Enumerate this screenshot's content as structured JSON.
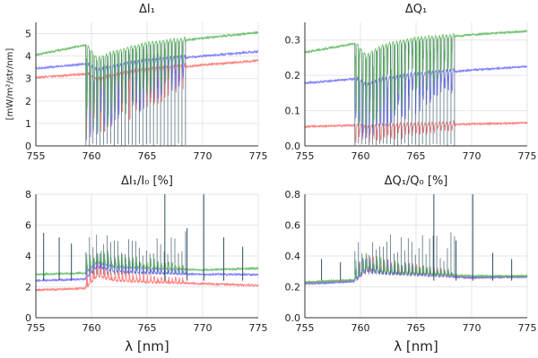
{
  "colors": {
    "red": "#ff6b6b",
    "blue": "#6b6bff",
    "green": "#5cb85c",
    "dark": "#2f4f5f",
    "grid": "#e6e6e6",
    "axis": "#333333"
  },
  "chart_data": [
    {
      "type": "line",
      "title": "ΔI₁",
      "xlabel": "",
      "ylabel": "[mW/m²/str/nm]",
      "xlim": [
        755,
        775
      ],
      "ylim": [
        0,
        5.5
      ],
      "xticks": [
        "755",
        "760",
        "765",
        "770",
        "775"
      ],
      "yticks": [
        "0",
        "1",
        "2",
        "3",
        "4",
        "5"
      ],
      "ytick_values": [
        0,
        1,
        2,
        3,
        4,
        5
      ],
      "grid": true,
      "legend": "none",
      "absorption_band_nm": [
        759.5,
        768.5
      ],
      "series": [
        {
          "color": "#ff6b6b",
          "x": [
            755,
            759.5,
            760.5,
            762,
            765,
            770,
            775
          ],
          "values": [
            3.05,
            3.2,
            2.9,
            3.1,
            3.35,
            3.6,
            3.8
          ]
        },
        {
          "color": "#6b6bff",
          "x": [
            755,
            759.5,
            760.5,
            762,
            765,
            770,
            775
          ],
          "values": [
            3.45,
            3.65,
            3.3,
            3.5,
            3.75,
            4.0,
            4.2
          ]
        },
        {
          "color": "#5cb85c",
          "x": [
            755,
            759.5,
            760.5,
            762,
            765,
            770,
            775
          ],
          "values": [
            4.05,
            4.5,
            3.8,
            4.1,
            4.5,
            4.8,
            5.05
          ]
        }
      ]
    },
    {
      "type": "line",
      "title": "ΔQ₁",
      "xlabel": "",
      "ylabel": "",
      "xlim": [
        755,
        775
      ],
      "ylim": [
        0,
        0.35
      ],
      "xticks": [
        "755",
        "760",
        "765",
        "770",
        "775"
      ],
      "yticks": [
        "0.0",
        "0.1",
        "0.2",
        "0.3"
      ],
      "ytick_values": [
        0,
        0.1,
        0.2,
        0.3
      ],
      "grid": true,
      "legend": "none",
      "absorption_band_nm": [
        759.5,
        768.5
      ],
      "series": [
        {
          "color": "#ff6b6b",
          "x": [
            755,
            759.5,
            760.5,
            762,
            765,
            770,
            775
          ],
          "values": [
            0.055,
            0.058,
            0.05,
            0.055,
            0.058,
            0.062,
            0.065
          ]
        },
        {
          "color": "#6b6bff",
          "x": [
            755,
            759.5,
            760.5,
            762,
            765,
            770,
            775
          ],
          "values": [
            0.178,
            0.19,
            0.17,
            0.185,
            0.2,
            0.215,
            0.225
          ]
        },
        {
          "color": "#5cb85c",
          "x": [
            755,
            759.5,
            760.5,
            762,
            765,
            770,
            775
          ],
          "values": [
            0.265,
            0.29,
            0.25,
            0.28,
            0.3,
            0.315,
            0.325
          ]
        }
      ]
    },
    {
      "type": "line",
      "title": "ΔI₁/I₀ [%]",
      "xlabel": "λ [nm]",
      "ylabel": "",
      "xlim": [
        755,
        775
      ],
      "ylim": [
        0,
        8
      ],
      "xticks": [
        "755",
        "760",
        "765",
        "770",
        "775"
      ],
      "yticks": [
        "0",
        "2",
        "4",
        "6",
        "8"
      ],
      "ytick_values": [
        0,
        2,
        4,
        6,
        8
      ],
      "grid": true,
      "legend": "none",
      "absorption_band_nm": [
        759.5,
        768.5
      ],
      "series": [
        {
          "color": "#ff6b6b",
          "x": [
            755,
            759.5,
            760.5,
            762,
            765,
            770,
            775
          ],
          "values": [
            1.8,
            1.9,
            2.7,
            2.4,
            2.3,
            2.2,
            2.1
          ]
        },
        {
          "color": "#6b6bff",
          "x": [
            755,
            759.5,
            760.5,
            762,
            765,
            770,
            775
          ],
          "values": [
            2.4,
            2.5,
            3.3,
            3.0,
            2.9,
            2.8,
            2.8
          ]
        },
        {
          "color": "#5cb85c",
          "x": [
            755,
            759.5,
            760.5,
            762,
            765,
            770,
            775
          ],
          "values": [
            2.8,
            2.9,
            3.6,
            3.3,
            3.2,
            3.1,
            3.2
          ]
        }
      ],
      "spikes": [
        {
          "x": 755.7,
          "y": 5.5
        },
        {
          "x": 757.1,
          "y": 5.2
        },
        {
          "x": 758.2,
          "y": 4.8
        },
        {
          "x": 766.6,
          "y": 8.0
        },
        {
          "x": 770.1,
          "y": 8.0
        },
        {
          "x": 768.6,
          "y": 5.8
        },
        {
          "x": 771.9,
          "y": 5.2
        },
        {
          "x": 773.6,
          "y": 4.6
        }
      ]
    },
    {
      "type": "line",
      "title": "ΔQ₁/Q₀ [%]",
      "xlabel": "λ [nm]",
      "ylabel": "",
      "xlim": [
        755,
        775
      ],
      "ylim": [
        0,
        0.8
      ],
      "xticks": [
        "755",
        "760",
        "765",
        "770",
        "775"
      ],
      "yticks": [
        "0.0",
        "0.2",
        "0.4",
        "0.6",
        "0.8"
      ],
      "ytick_values": [
        0,
        0.2,
        0.4,
        0.6,
        0.8
      ],
      "grid": true,
      "legend": "none",
      "absorption_band_nm": [
        759.5,
        768.5
      ],
      "series": [
        {
          "color": "#ff6b6b",
          "x": [
            755,
            759.5,
            760.5,
            762,
            765,
            770,
            775
          ],
          "values": [
            0.225,
            0.24,
            0.31,
            0.29,
            0.28,
            0.26,
            0.27
          ]
        },
        {
          "color": "#6b6bff",
          "x": [
            755,
            759.5,
            760.5,
            762,
            765,
            770,
            775
          ],
          "values": [
            0.22,
            0.235,
            0.3,
            0.285,
            0.275,
            0.26,
            0.265
          ]
        },
        {
          "color": "#5cb85c",
          "x": [
            755,
            759.5,
            760.5,
            762,
            765,
            770,
            775
          ],
          "values": [
            0.23,
            0.245,
            0.32,
            0.295,
            0.285,
            0.27,
            0.27
          ]
        }
      ],
      "spikes": [
        {
          "x": 756.5,
          "y": 0.38
        },
        {
          "x": 758.2,
          "y": 0.36
        },
        {
          "x": 766.6,
          "y": 0.8
        },
        {
          "x": 770.1,
          "y": 0.8
        },
        {
          "x": 768.6,
          "y": 0.5
        },
        {
          "x": 771.9,
          "y": 0.42
        },
        {
          "x": 773.6,
          "y": 0.38
        }
      ]
    }
  ]
}
